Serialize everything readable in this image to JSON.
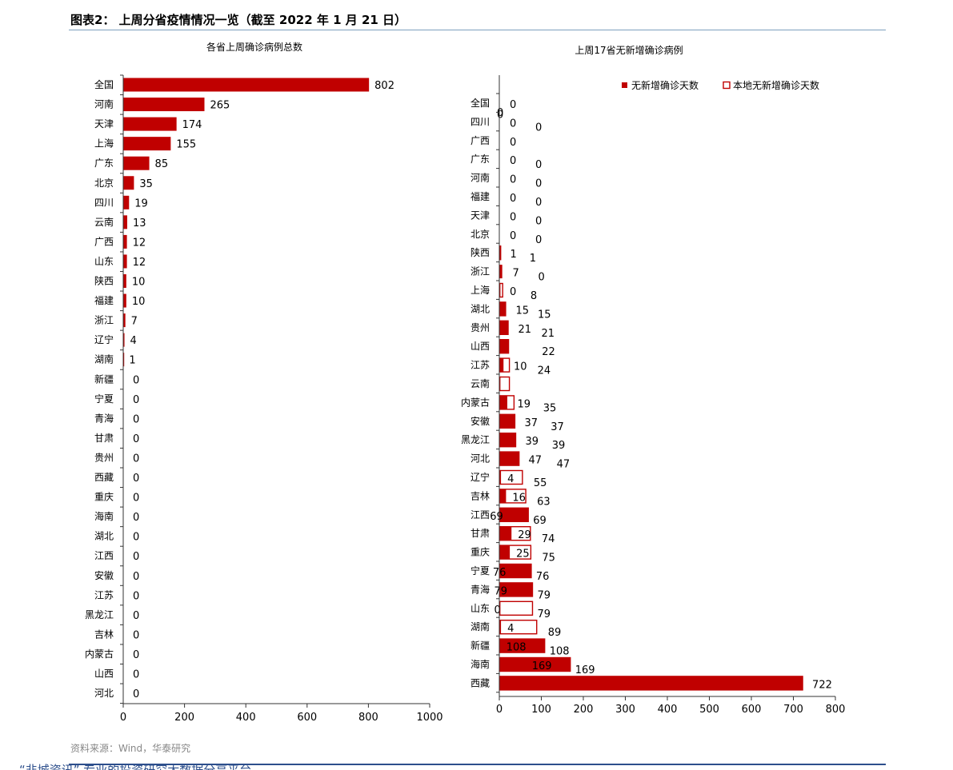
{
  "figure": {
    "title": "图表2： 上周分省疫情情况一览（截至 2022 年 1 月 21 日）",
    "source": "资料来源：Wind，华泰研究",
    "bottom_banner": "“韭城资讯” 专业的投资研究大数据分享平台"
  },
  "colors": {
    "bar_red": "#c00000",
    "axis": "#333333",
    "rule": "#7da0bf",
    "navy": "#2d4f8c"
  },
  "chart_data": [
    {
      "type": "bar",
      "orientation": "horizontal",
      "title": "各省上周确诊病例总数",
      "categories": [
        "全国",
        "河南",
        "天津",
        "上海",
        "广东",
        "北京",
        "四川",
        "云南",
        "广西",
        "山东",
        "陕西",
        "福建",
        "浙江",
        "辽宁",
        "湖南",
        "新疆",
        "宁夏",
        "青海",
        "甘肃",
        "贵州",
        "西藏",
        "重庆",
        "海南",
        "湖北",
        "江西",
        "安徽",
        "江苏",
        "黑龙江",
        "吉林",
        "内蒙古",
        "山西",
        "河北"
      ],
      "values": [
        802,
        265,
        174,
        155,
        85,
        35,
        19,
        13,
        12,
        12,
        10,
        10,
        7,
        4,
        1,
        0,
        0,
        0,
        0,
        0,
        0,
        0,
        0,
        0,
        0,
        0,
        0,
        0,
        0,
        0,
        0,
        0
      ],
      "xlim": [
        0,
        1000
      ],
      "xticks": [
        0,
        200,
        400,
        600,
        800,
        1000
      ]
    },
    {
      "type": "bar",
      "orientation": "horizontal",
      "title": "上周17省无新增确诊病例",
      "legend_position": "top-right",
      "categories": [
        "全国",
        "四川",
        "广西",
        "广东",
        "河南",
        "福建",
        "天津",
        "北京",
        "陕西",
        "浙江",
        "上海",
        "湖北",
        "贵州",
        "山西",
        "江苏",
        "云南",
        "内蒙古",
        "安徽",
        "黑龙江",
        "河北",
        "辽宁",
        "吉林",
        "江西",
        "甘肃",
        "重庆",
        "宁夏",
        "青海",
        "山东",
        "湖南",
        "新疆",
        "海南",
        "西藏"
      ],
      "series": [
        {
          "name": "无新增确诊天数",
          "style": "filled",
          "values": [
            0,
            0,
            0,
            0,
            0,
            0,
            0,
            0,
            1,
            7,
            0,
            15,
            21,
            22,
            10,
            null,
            19,
            37,
            39,
            47,
            4,
            16,
            69,
            29,
            25,
            76,
            79,
            0,
            4,
            108,
            169,
            722
          ],
          "labels": [
            "0",
            "0",
            "0",
            "0",
            "0",
            "0",
            "0",
            "0",
            "1",
            "7",
            "0",
            "15",
            "21",
            "",
            "10",
            "",
            "19",
            "37",
            "39",
            "47",
            "4",
            "16",
            "69",
            "29",
            "25",
            "76",
            "79",
            "0",
            "4",
            "108",
            "169",
            "722"
          ]
        },
        {
          "name": "本地无新增确诊天数",
          "style": "outline",
          "values": [
            0,
            0,
            0,
            0,
            0,
            0,
            0,
            0,
            1,
            0,
            8,
            15,
            21,
            22,
            24,
            24,
            35,
            37,
            39,
            47,
            55,
            63,
            69,
            74,
            75,
            76,
            79,
            79,
            89,
            108,
            169,
            722
          ],
          "labels": [
            "",
            "0",
            "",
            "0",
            "0",
            "0",
            "0",
            "0",
            "1",
            "0",
            "8",
            "15",
            "21",
            "22",
            "24",
            "",
            "35",
            "37",
            "39",
            "47",
            "55",
            "63",
            "69",
            "74",
            "75",
            "76",
            "79",
            "79",
            "89",
            "108",
            "169",
            ""
          ]
        }
      ],
      "stray_labels": [
        {
          "category": "全国",
          "text": "0"
        },
        {
          "category": "四川",
          "text": "0"
        }
      ],
      "xlim": [
        0,
        800
      ],
      "xticks": [
        0,
        100,
        200,
        300,
        400,
        500,
        600,
        700,
        800
      ]
    }
  ]
}
